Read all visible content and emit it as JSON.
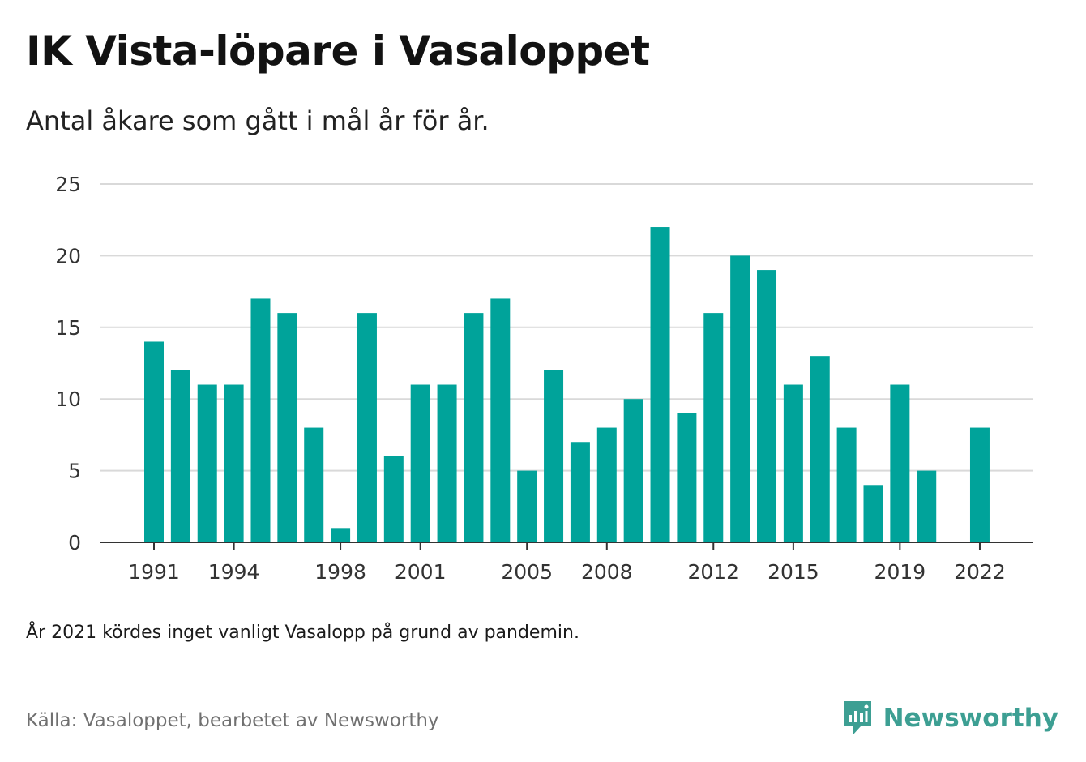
{
  "title": "IK Vista-löpare i Vasaloppet",
  "subtitle": "Antal åkare som gått i mål år för år.",
  "note": "År 2021 kördes inget vanligt Vasalopp på grund av pandemin.",
  "source": "Källa: Vasaloppet, bearbetet av Newsworthy",
  "brand": {
    "name": "Newsworthy",
    "icon": "newsworthy-logo-icon",
    "color": "#3d9f93"
  },
  "colors": {
    "bar": "#00a39a",
    "grid": "#d9d9d9",
    "axis": "#333333"
  },
  "chart_data": {
    "type": "bar",
    "title": "IK Vista-löpare i Vasaloppet",
    "subtitle": "Antal åkare som gått i mål år för år.",
    "xlabel": "",
    "ylabel": "",
    "x": [
      1991,
      1992,
      1993,
      1994,
      1995,
      1996,
      1997,
      1998,
      1999,
      2000,
      2001,
      2002,
      2003,
      2004,
      2005,
      2006,
      2007,
      2008,
      2009,
      2010,
      2011,
      2012,
      2013,
      2014,
      2015,
      2016,
      2017,
      2018,
      2019,
      2020,
      2021,
      2022
    ],
    "values": [
      14,
      12,
      11,
      11,
      17,
      16,
      8,
      1,
      16,
      6,
      11,
      11,
      16,
      17,
      5,
      12,
      7,
      8,
      10,
      22,
      9,
      16,
      20,
      19,
      11,
      13,
      8,
      4,
      11,
      5,
      null,
      8
    ],
    "x_tick_labels": [
      1991,
      1994,
      1998,
      2001,
      2005,
      2008,
      2012,
      2015,
      2019,
      2022
    ],
    "ylim": [
      0,
      25
    ],
    "y_ticks": [
      0,
      5,
      10,
      15,
      20,
      25
    ],
    "grid": "horizontal",
    "legend": "none"
  }
}
